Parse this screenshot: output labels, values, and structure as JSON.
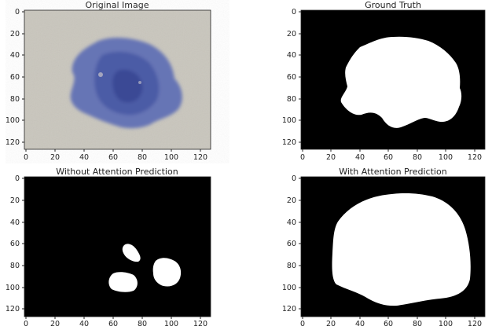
{
  "panels": [
    {
      "title": "Original Image",
      "content": "image",
      "x_ticks": [
        "0",
        "20",
        "40",
        "60",
        "80",
        "100",
        "120"
      ],
      "y_ticks": [
        "0",
        "20",
        "40",
        "60",
        "80",
        "100",
        "120"
      ]
    },
    {
      "title": "Ground Truth",
      "content": "mask",
      "x_ticks": [
        "0",
        "20",
        "40",
        "60",
        "80",
        "100",
        "120"
      ],
      "y_ticks": [
        "0",
        "20",
        "40",
        "60",
        "80",
        "100",
        "120"
      ]
    },
    {
      "title": "Without Attention Prediction",
      "content": "mask",
      "x_ticks": [
        "0",
        "20",
        "40",
        "60",
        "80",
        "100",
        "120"
      ],
      "y_ticks": [
        "0",
        "20",
        "40",
        "60",
        "80",
        "100",
        "120"
      ]
    },
    {
      "title": "With Attention Prediction",
      "content": "mask",
      "x_ticks": [
        "0",
        "20",
        "40",
        "60",
        "80",
        "100",
        "120"
      ],
      "y_ticks": [
        "0",
        "20",
        "40",
        "60",
        "80",
        "100",
        "120"
      ]
    }
  ],
  "colors": {
    "skin_background": "#c9c6bd",
    "lesion_blue": "#5566b0",
    "lesion_dark": "#3a4a92",
    "mask_background": "#000000",
    "mask_foreground": "#ffffff"
  }
}
